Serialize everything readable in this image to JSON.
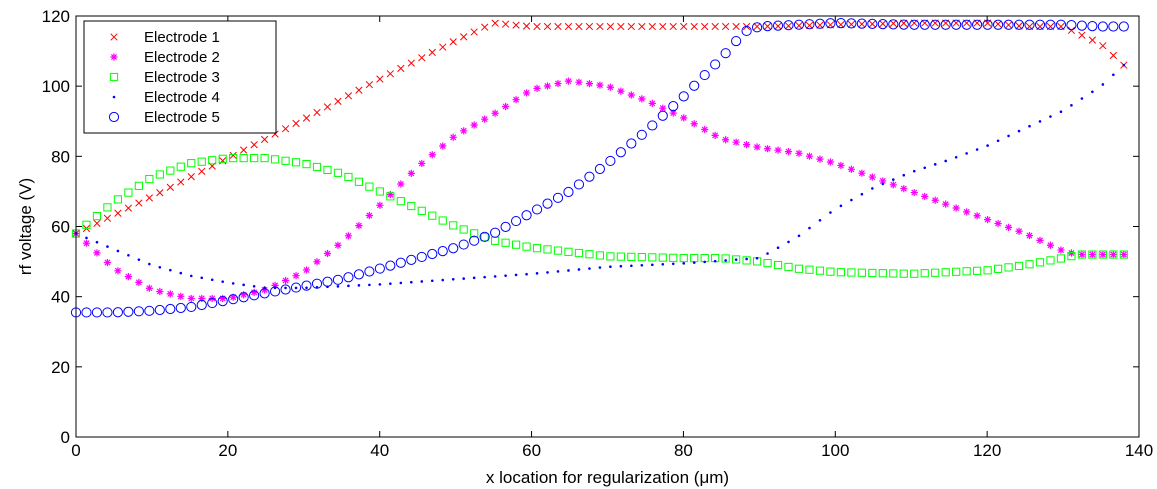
{
  "chart_data": {
    "type": "scatter",
    "title": "",
    "xlabel": "x location for regularization (μm)",
    "ylabel": "rf voltage (V)",
    "xlim": [
      0,
      140
    ],
    "ylim": [
      0,
      120
    ],
    "xticks": [
      0,
      20,
      40,
      60,
      80,
      100,
      120,
      140
    ],
    "yticks": [
      0,
      20,
      40,
      60,
      80,
      100,
      120
    ],
    "xtick_labels": [
      "0",
      "20",
      "40",
      "60",
      "80",
      "100",
      "120",
      "140"
    ],
    "ytick_labels": [
      "0",
      "20",
      "40",
      "60",
      "80",
      "100",
      "120"
    ],
    "grid": false,
    "legend": "top-left",
    "sample_step": 1.38,
    "series": [
      {
        "name": "Electrode 1",
        "marker": "x",
        "color": "#ff0000",
        "x": [
          0,
          10,
          20,
          30,
          40,
          50,
          55,
          60,
          70,
          80,
          90,
          100,
          110,
          120,
          125,
          130,
          135,
          138
        ],
        "y": [
          58,
          68.5,
          79.5,
          90.5,
          102,
          113,
          118,
          117,
          117,
          117,
          117,
          117.5,
          118,
          118,
          117,
          117,
          112,
          106
        ]
      },
      {
        "name": "Electrode 2",
        "marker": "star",
        "color": "#ff00ff",
        "x": [
          0,
          5,
          10,
          15,
          20,
          25,
          30,
          35,
          40,
          45,
          50,
          55,
          60,
          65,
          70,
          75,
          80,
          85,
          90,
          95,
          100,
          105,
          110,
          115,
          120,
          125,
          130,
          132,
          135,
          138
        ],
        "y": [
          58,
          48,
          42,
          39.5,
          39.5,
          42,
          47,
          55.5,
          66,
          77,
          86,
          92,
          99,
          101.5,
          100,
          96,
          91,
          85,
          82.5,
          81,
          78,
          74,
          70,
          66,
          62,
          58,
          53,
          52,
          52,
          52
        ]
      },
      {
        "name": "Electrode 3",
        "marker": "square",
        "color": "#00ff00",
        "x": [
          0,
          5,
          10,
          15,
          20,
          25,
          30,
          35,
          40,
          45,
          50,
          55,
          60,
          70,
          80,
          85,
          90,
          95,
          100,
          110,
          120,
          125,
          130,
          132,
          135,
          138
        ],
        "y": [
          58,
          67,
          74,
          78,
          79.5,
          79.5,
          78,
          75,
          70,
          65,
          60,
          56,
          54,
          51.5,
          51,
          51,
          50,
          48,
          47,
          46.5,
          47.5,
          49,
          51,
          52,
          52,
          52
        ]
      },
      {
        "name": "Electrode 4",
        "marker": "dot",
        "color": "#0000ff",
        "x": [
          0,
          5,
          10,
          15,
          20,
          25,
          30,
          40,
          50,
          60,
          70,
          80,
          90,
          95,
          100,
          105,
          110,
          115,
          120,
          125,
          130,
          135,
          138
        ],
        "y": [
          58,
          53.5,
          49,
          46,
          44,
          42.5,
          42.5,
          43.5,
          45,
          46.5,
          48.5,
          49.5,
          51,
          57,
          65,
          71,
          75.5,
          79,
          83,
          88,
          93,
          100,
          106
        ]
      },
      {
        "name": "Electrode 5",
        "marker": "circle",
        "color": "#0000ff",
        "x": [
          0,
          5,
          10,
          15,
          20,
          25,
          30,
          35,
          40,
          45,
          50,
          55,
          60,
          65,
          70,
          75,
          80,
          85,
          88,
          90,
          95,
          100,
          110,
          120,
          130,
          135,
          138
        ],
        "y": [
          35.5,
          35.5,
          36,
          37,
          39,
          41,
          43,
          45,
          48,
          51,
          54,
          58,
          64,
          70,
          78,
          87,
          97,
          108,
          115.5,
          117,
          117.5,
          118,
          117.5,
          117.5,
          117.5,
          117,
          117
        ]
      }
    ]
  }
}
